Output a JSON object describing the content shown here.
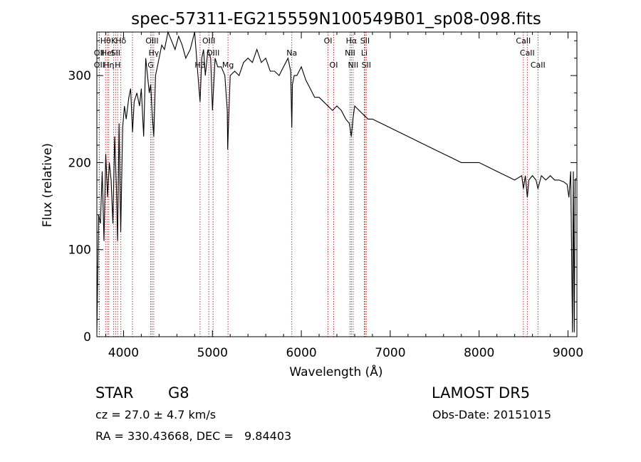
{
  "chart_data": {
    "type": "line",
    "title": "spec-57311-EG215559N100549B01_sp08-098.fits",
    "xlabel": "Wavelength (Å)",
    "ylabel": "Flux (relative)",
    "xlim": [
      3700,
      9100
    ],
    "ylim": [
      0,
      350
    ],
    "xticks": [
      4000,
      5000,
      6000,
      7000,
      8000,
      9000
    ],
    "yticks": [
      0,
      100,
      200,
      300
    ],
    "line_color": "#000000",
    "marker_color": "#b22222",
    "spectrum": {
      "x": [
        3700,
        3720,
        3740,
        3760,
        3780,
        3800,
        3820,
        3840,
        3860,
        3880,
        3900,
        3920,
        3933,
        3950,
        3968,
        3990,
        4010,
        4030,
        4060,
        4080,
        4101,
        4120,
        4150,
        4180,
        4200,
        4226,
        4250,
        4270,
        4290,
        4305,
        4320,
        4340,
        4360,
        4380,
        4400,
        4430,
        4460,
        4500,
        4540,
        4580,
        4620,
        4660,
        4700,
        4750,
        4800,
        4830,
        4861,
        4880,
        4900,
        4920,
        4950,
        4980,
        5000,
        5030,
        5060,
        5100,
        5140,
        5167,
        5172,
        5183,
        5200,
        5250,
        5300,
        5350,
        5400,
        5450,
        5500,
        5550,
        5600,
        5650,
        5700,
        5750,
        5800,
        5850,
        5880,
        5893,
        5900,
        5920,
        5950,
        6000,
        6050,
        6100,
        6150,
        6200,
        6250,
        6300,
        6350,
        6400,
        6450,
        6500,
        6540,
        6563,
        6580,
        6600,
        6650,
        6700,
        6750,
        6800,
        6900,
        7000,
        7100,
        7200,
        7300,
        7400,
        7500,
        7600,
        7700,
        7800,
        7900,
        8000,
        8100,
        8200,
        8300,
        8400,
        8480,
        8498,
        8520,
        8542,
        8560,
        8600,
        8640,
        8662,
        8700,
        8750,
        8800,
        8850,
        8900,
        8950,
        8990,
        9010,
        9030,
        9050,
        9060,
        9070,
        9080,
        9090
      ],
      "y": [
        5,
        140,
        130,
        190,
        110,
        210,
        160,
        200,
        180,
        130,
        230,
        170,
        110,
        245,
        120,
        240,
        265,
        250,
        275,
        285,
        235,
        270,
        280,
        265,
        285,
        230,
        320,
        300,
        280,
        290,
        260,
        230,
        300,
        310,
        320,
        335,
        330,
        350,
        340,
        330,
        345,
        335,
        320,
        330,
        350,
        310,
        270,
        320,
        330,
        300,
        330,
        320,
        260,
        320,
        310,
        310,
        300,
        260,
        215,
        250,
        300,
        305,
        300,
        315,
        320,
        315,
        330,
        315,
        320,
        305,
        305,
        300,
        310,
        320,
        305,
        240,
        290,
        300,
        300,
        310,
        295,
        285,
        275,
        275,
        270,
        265,
        260,
        265,
        260,
        250,
        245,
        230,
        250,
        265,
        260,
        255,
        250,
        250,
        245,
        240,
        235,
        230,
        225,
        220,
        215,
        210,
        205,
        200,
        200,
        200,
        195,
        190,
        185,
        180,
        185,
        170,
        185,
        160,
        180,
        185,
        180,
        170,
        185,
        180,
        185,
        180,
        180,
        178,
        175,
        160,
        190,
        5,
        190,
        5,
        180,
        182
      ]
    },
    "lines": [
      {
        "x": 3798,
        "row": 0,
        "label": "Hθ"
      },
      {
        "x": 3889,
        "row": 0,
        "label": "K"
      },
      {
        "x": 3970,
        "row": 0,
        "label": "Hδ"
      },
      {
        "x": 3727,
        "row": 1,
        "label": "OII"
      },
      {
        "x": 3820,
        "row": 1,
        "label": "HeI"
      },
      {
        "x": 3910,
        "row": 1,
        "label": "SII"
      },
      {
        "x": 3727,
        "row": 2,
        "label": "OII"
      },
      {
        "x": 3835,
        "row": 2,
        "label": "Hη"
      },
      {
        "x": 3934,
        "row": 2,
        "label": "H"
      },
      {
        "x": 4100,
        "row": 0,
        "label": ""
      },
      {
        "x": 4320,
        "row": 0,
        "label": "OIII"
      },
      {
        "x": 4340,
        "row": 1,
        "label": "Hγ"
      },
      {
        "x": 4305,
        "row": 2,
        "label": "G"
      },
      {
        "x": 4861,
        "row": 2,
        "label": "Hβ"
      },
      {
        "x": 4959,
        "row": 0,
        "label": "OIII"
      },
      {
        "x": 5007,
        "row": 1,
        "label": "OIII"
      },
      {
        "x": 5175,
        "row": 2,
        "label": "Mg"
      },
      {
        "x": 5893,
        "row": 1,
        "label": "Na"
      },
      {
        "x": 6300,
        "row": 0,
        "label": "OI"
      },
      {
        "x": 6364,
        "row": 2,
        "label": "OI"
      },
      {
        "x": 6563,
        "row": 0,
        "label": "Hα"
      },
      {
        "x": 6548,
        "row": 1,
        "label": "NII"
      },
      {
        "x": 6583,
        "row": 2,
        "label": "NII"
      },
      {
        "x": 6716,
        "row": 0,
        "label": "SII"
      },
      {
        "x": 6708,
        "row": 1,
        "label": "Li"
      },
      {
        "x": 6731,
        "row": 2,
        "label": "SII"
      },
      {
        "x": 8498,
        "row": 0,
        "label": "CaII"
      },
      {
        "x": 8542,
        "row": 1,
        "label": "CaII"
      },
      {
        "x": 8662,
        "row": 2,
        "label": "CaII"
      }
    ]
  },
  "info": {
    "class_label": "STAR",
    "subclass": "G8",
    "survey": "LAMOST DR5",
    "cz": "cz = 27.0 ± 4.7 km/s",
    "obs_date": "Obs-Date: 20151015",
    "coords": "RA = 330.43668, DEC =   9.84403"
  }
}
